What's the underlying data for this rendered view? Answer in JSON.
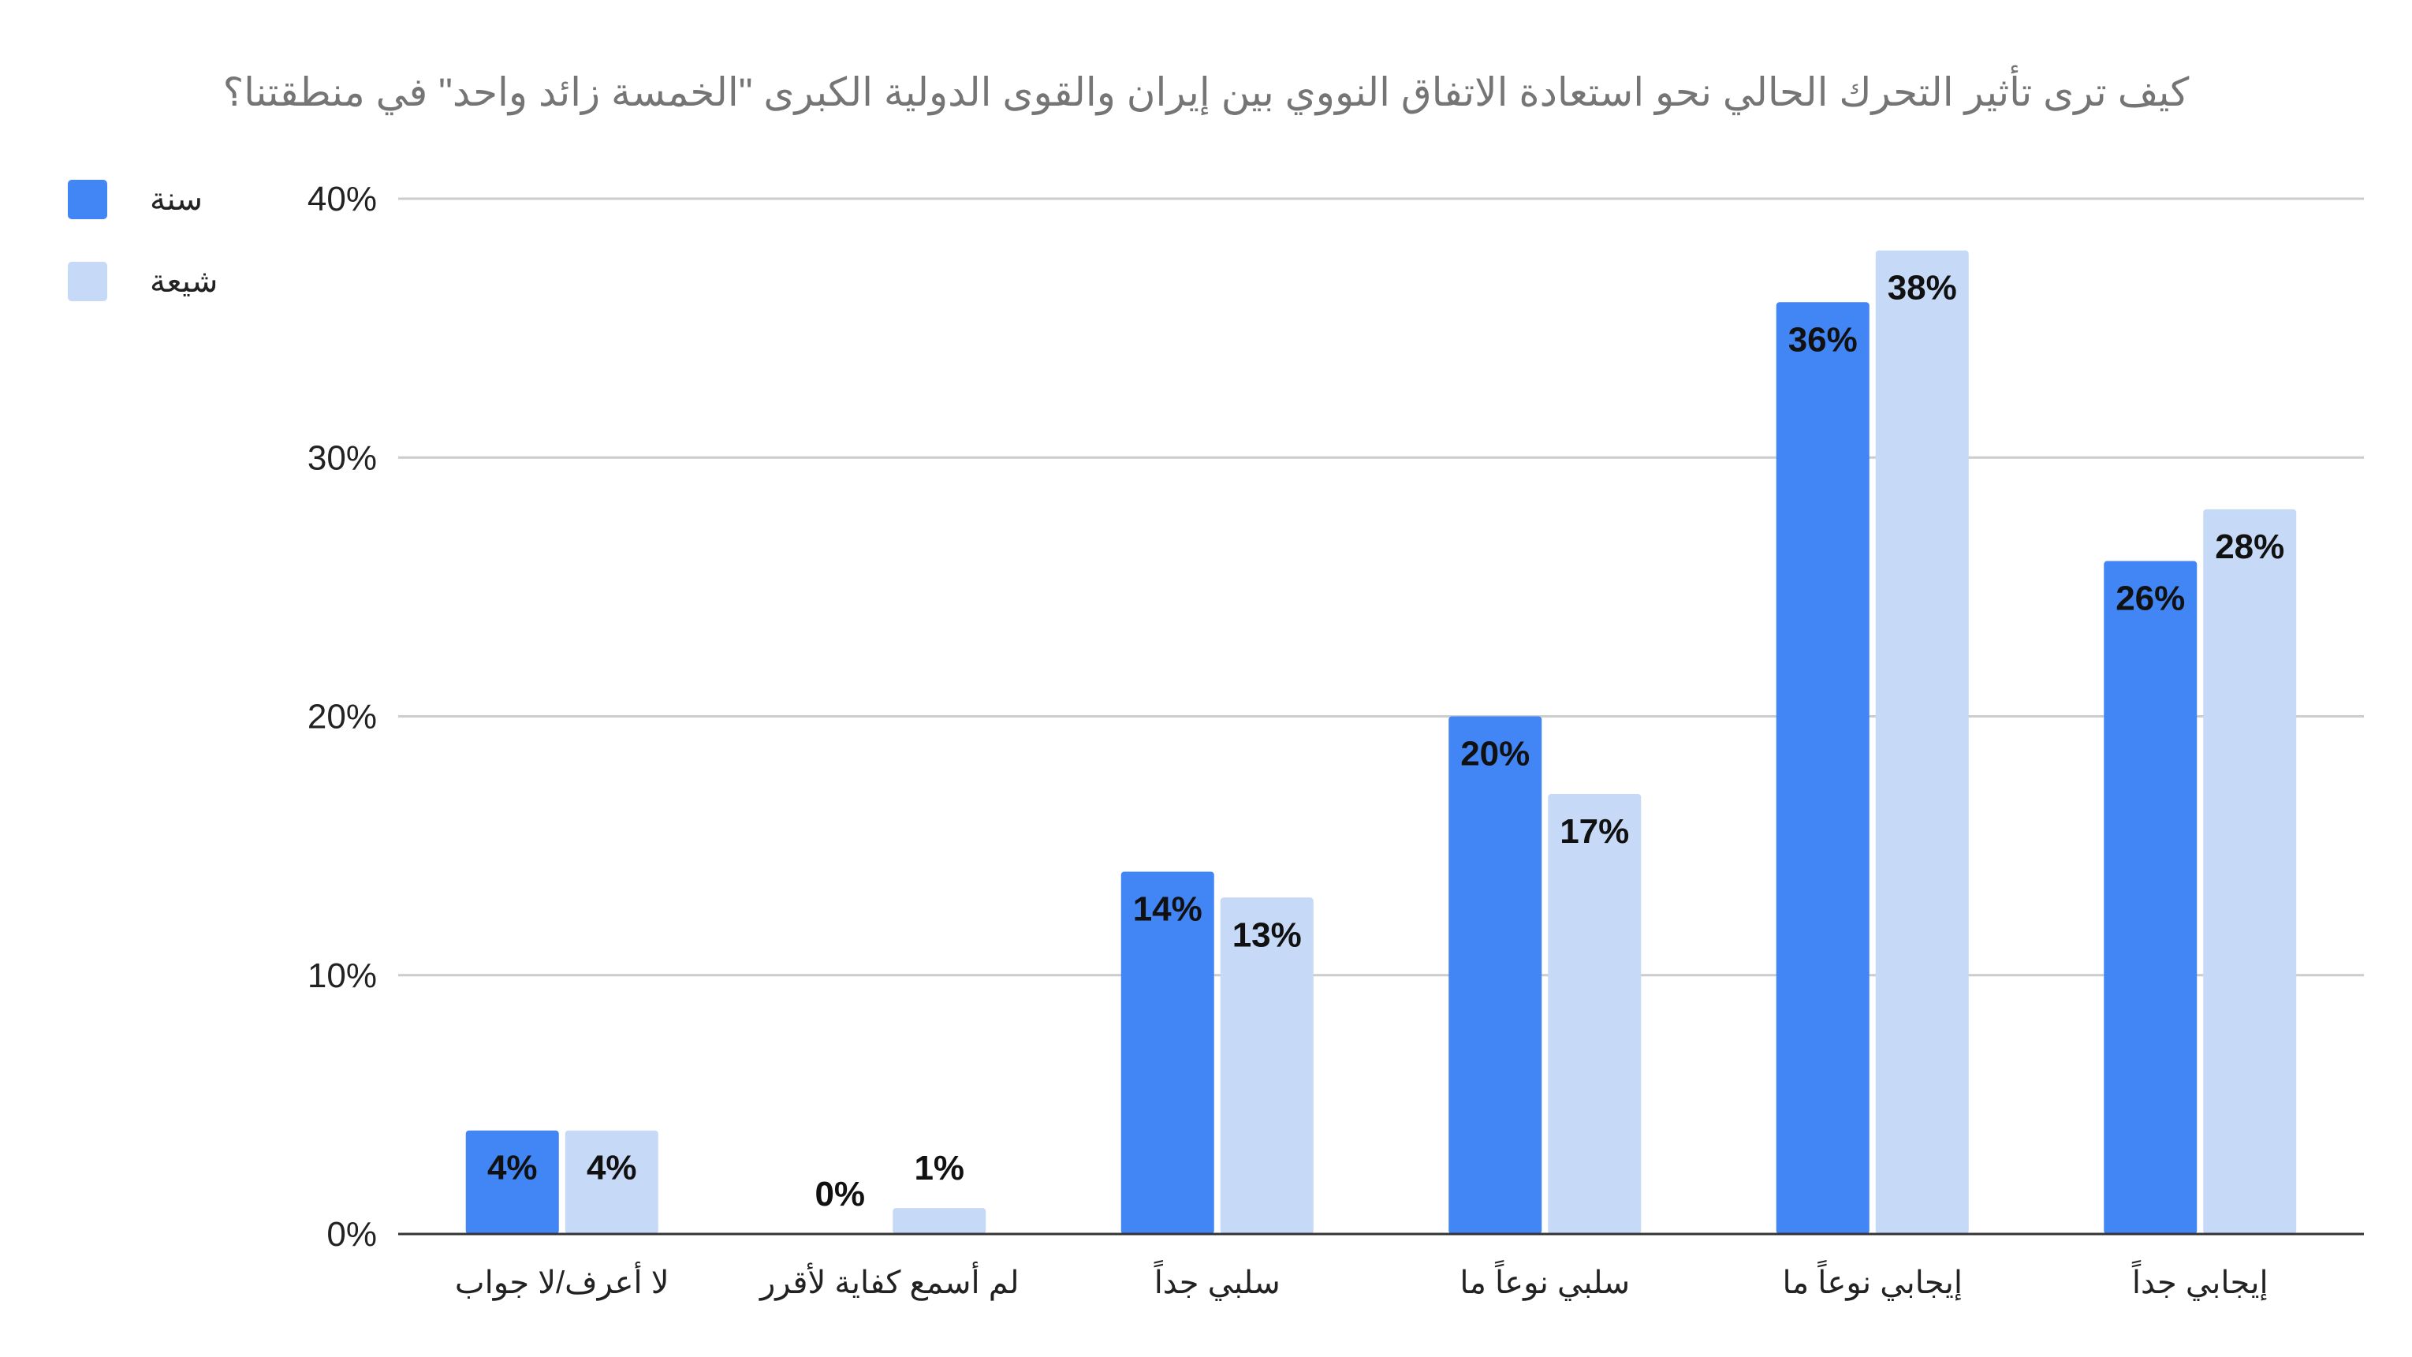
{
  "chart_data": {
    "type": "bar",
    "title": "كيف ترى تأثير التحرك الحالي نحو استعادة الاتفاق النووي بين إيران والقوى الدولية الكبرى \"الخمسة زائد واحد\" في منطقتنا؟",
    "categories": [
      "لا أعرف/لا جواب",
      "لم أسمع كفاية لأقرر",
      "سلبي جداً",
      "سلبي نوعاً ما",
      "إيجابي نوعاً ما",
      "إيجابي جداً"
    ],
    "series": [
      {
        "name": "سنة",
        "color": "#4285f4",
        "values": [
          4,
          0,
          14,
          20,
          36,
          26
        ]
      },
      {
        "name": "شيعة",
        "color": "#c6d9f7",
        "values": [
          4,
          1,
          13,
          17,
          38,
          28
        ]
      }
    ],
    "yticks": [
      "0%",
      "10%",
      "20%",
      "30%",
      "40%"
    ],
    "ytick_values": [
      0,
      10,
      20,
      30,
      40
    ],
    "ylim": [
      0,
      40
    ],
    "value_suffix": "%",
    "grid": true,
    "legend_position": "top-left"
  }
}
